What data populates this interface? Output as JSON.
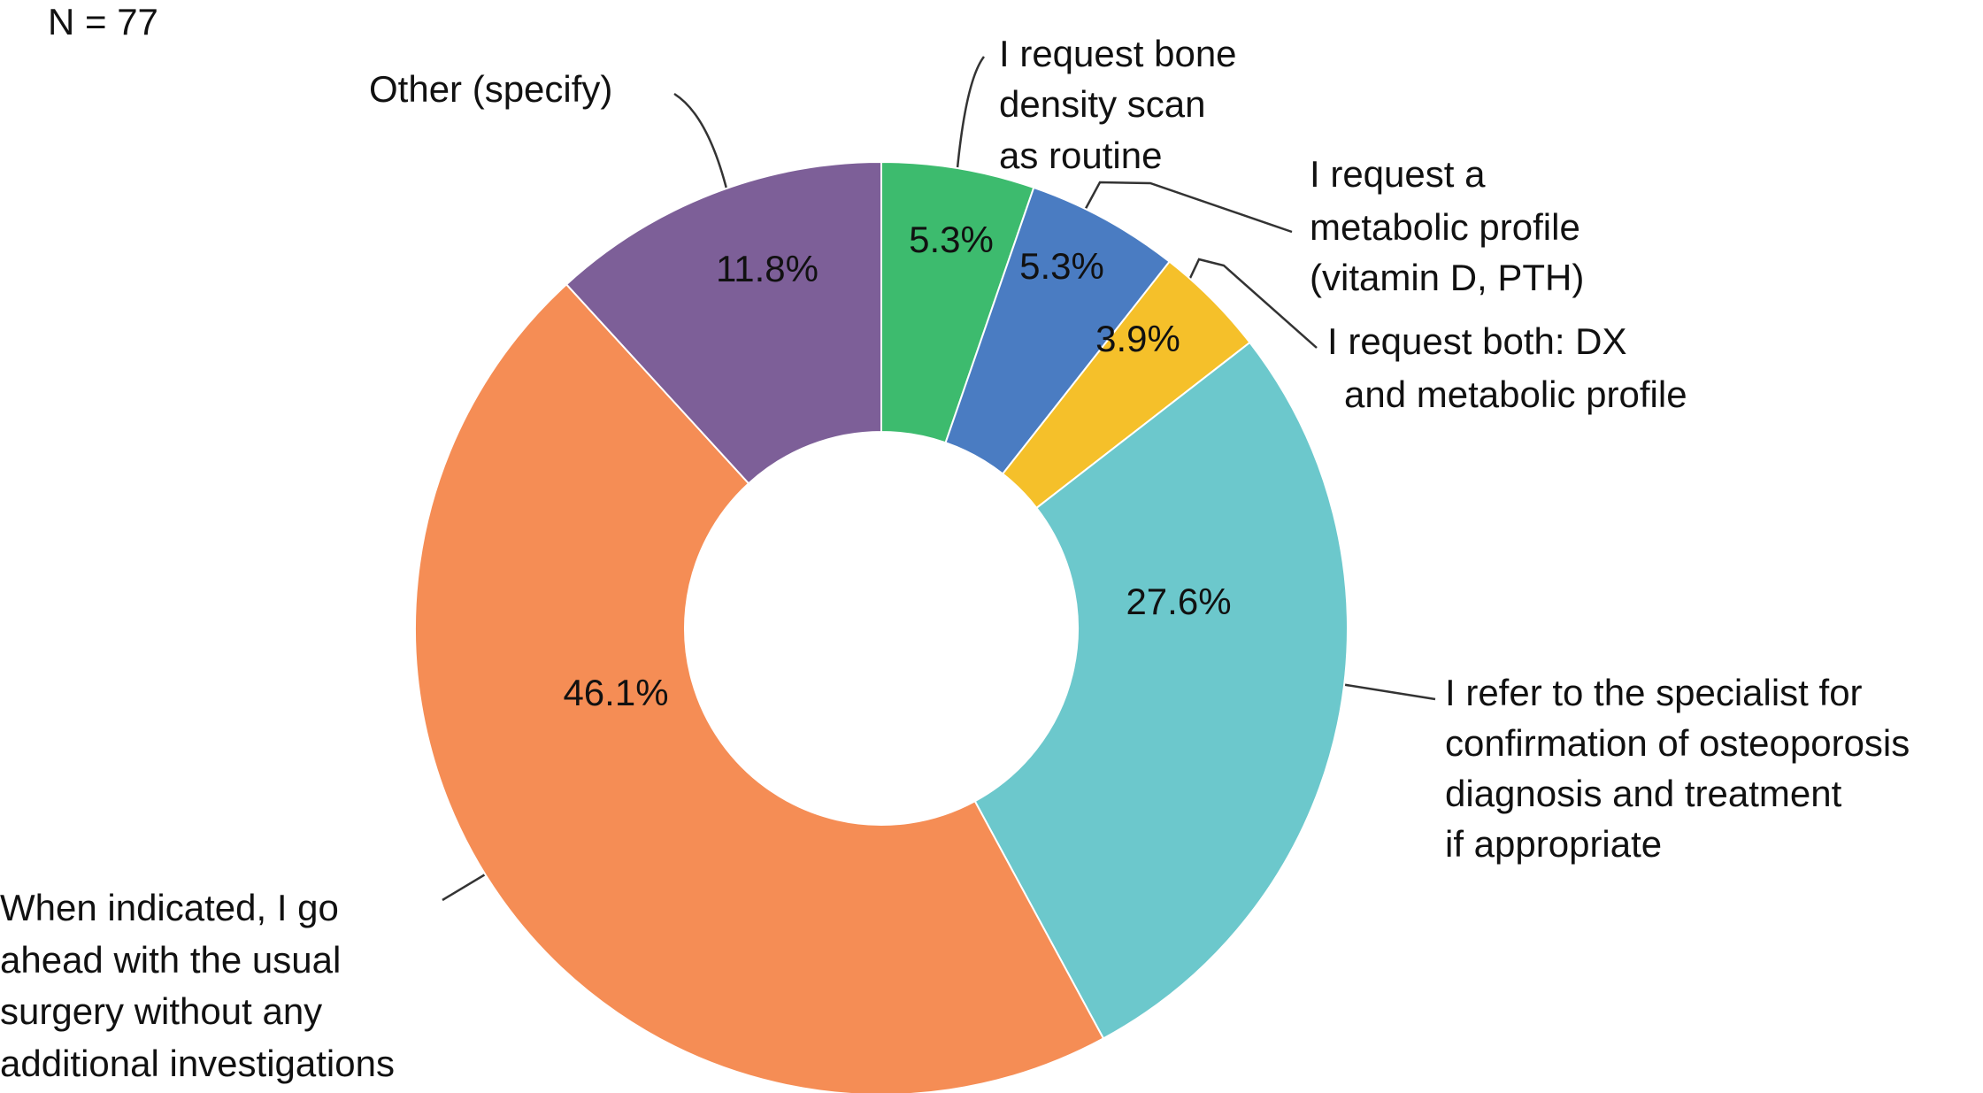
{
  "chart_data": {
    "type": "donut",
    "note": "N = 77",
    "labels": [
      [
        "I request bone",
        "density scan",
        "as routine"
      ],
      [
        "I request a",
        "metabolic profile",
        "(vitamin D, PTH)"
      ],
      [
        "I request both: DX",
        "and metabolic profile"
      ],
      [
        "I refer to the specialist for",
        "confirmation of osteoporosis",
        "diagnosis and treatment",
        "if appropriate"
      ],
      [
        "When indicated, I go",
        "ahead with the usual",
        "surgery without any",
        "additional investigations"
      ],
      [
        "Other (specify)"
      ]
    ],
    "values": [
      5.3,
      5.3,
      3.9,
      27.6,
      46.1,
      11.8
    ],
    "value_labels": [
      "5.3%",
      "5.3%",
      "3.9%",
      "27.6%",
      "46.1%",
      "11.8%"
    ],
    "colors": [
      "#3dbb6e",
      "#4a7cc2",
      "#f5c02a",
      "#6cc8cc",
      "#f58d55",
      "#7d5f98"
    ]
  }
}
